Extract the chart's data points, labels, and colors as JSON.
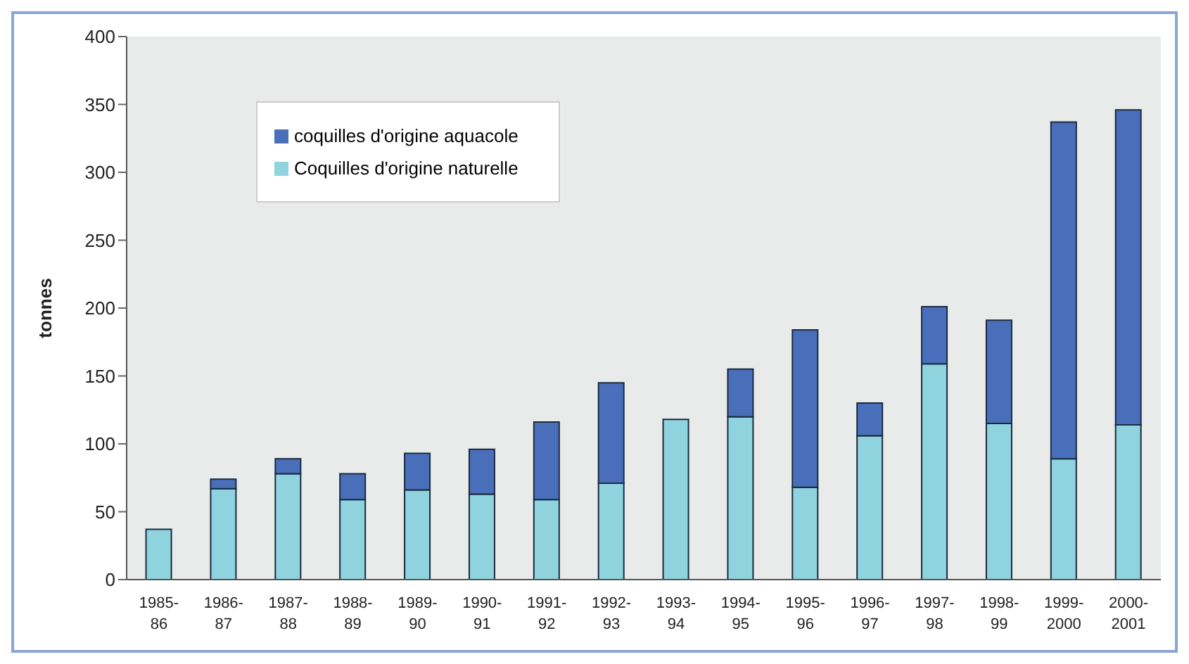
{
  "chart_data": {
    "type": "bar",
    "stacked": true,
    "ylabel": "tonnes",
    "categories": [
      "1985-\n86",
      "1986-\n87",
      "1987-\n88",
      "1988-\n89",
      "1989-\n90",
      "1990-\n91",
      "1991-\n92",
      "1992-\n93",
      "1993-\n94",
      "1994-\n95",
      "1995-\n96",
      "1996-\n97",
      "1997-\n98",
      "1998-\n99",
      "1999-\n2000",
      "2000-\n2001"
    ],
    "series": [
      {
        "name": "Coquilles d'origine naturelle",
        "color": "#8fd3de",
        "values": [
          37,
          67,
          78,
          59,
          66,
          63,
          59,
          71,
          118,
          120,
          68,
          106,
          159,
          115,
          89,
          114
        ]
      },
      {
        "name": "coquilles d'origine aquacole",
        "color": "#4a6fba",
        "values": [
          0,
          7,
          11,
          19,
          27,
          33,
          57,
          74,
          0,
          35,
          116,
          24,
          42,
          76,
          248,
          232
        ]
      }
    ],
    "ylim": [
      0,
      400
    ],
    "yticks": [
      0,
      50,
      100,
      150,
      200,
      250,
      300,
      350,
      400
    ],
    "legend": "top left"
  }
}
